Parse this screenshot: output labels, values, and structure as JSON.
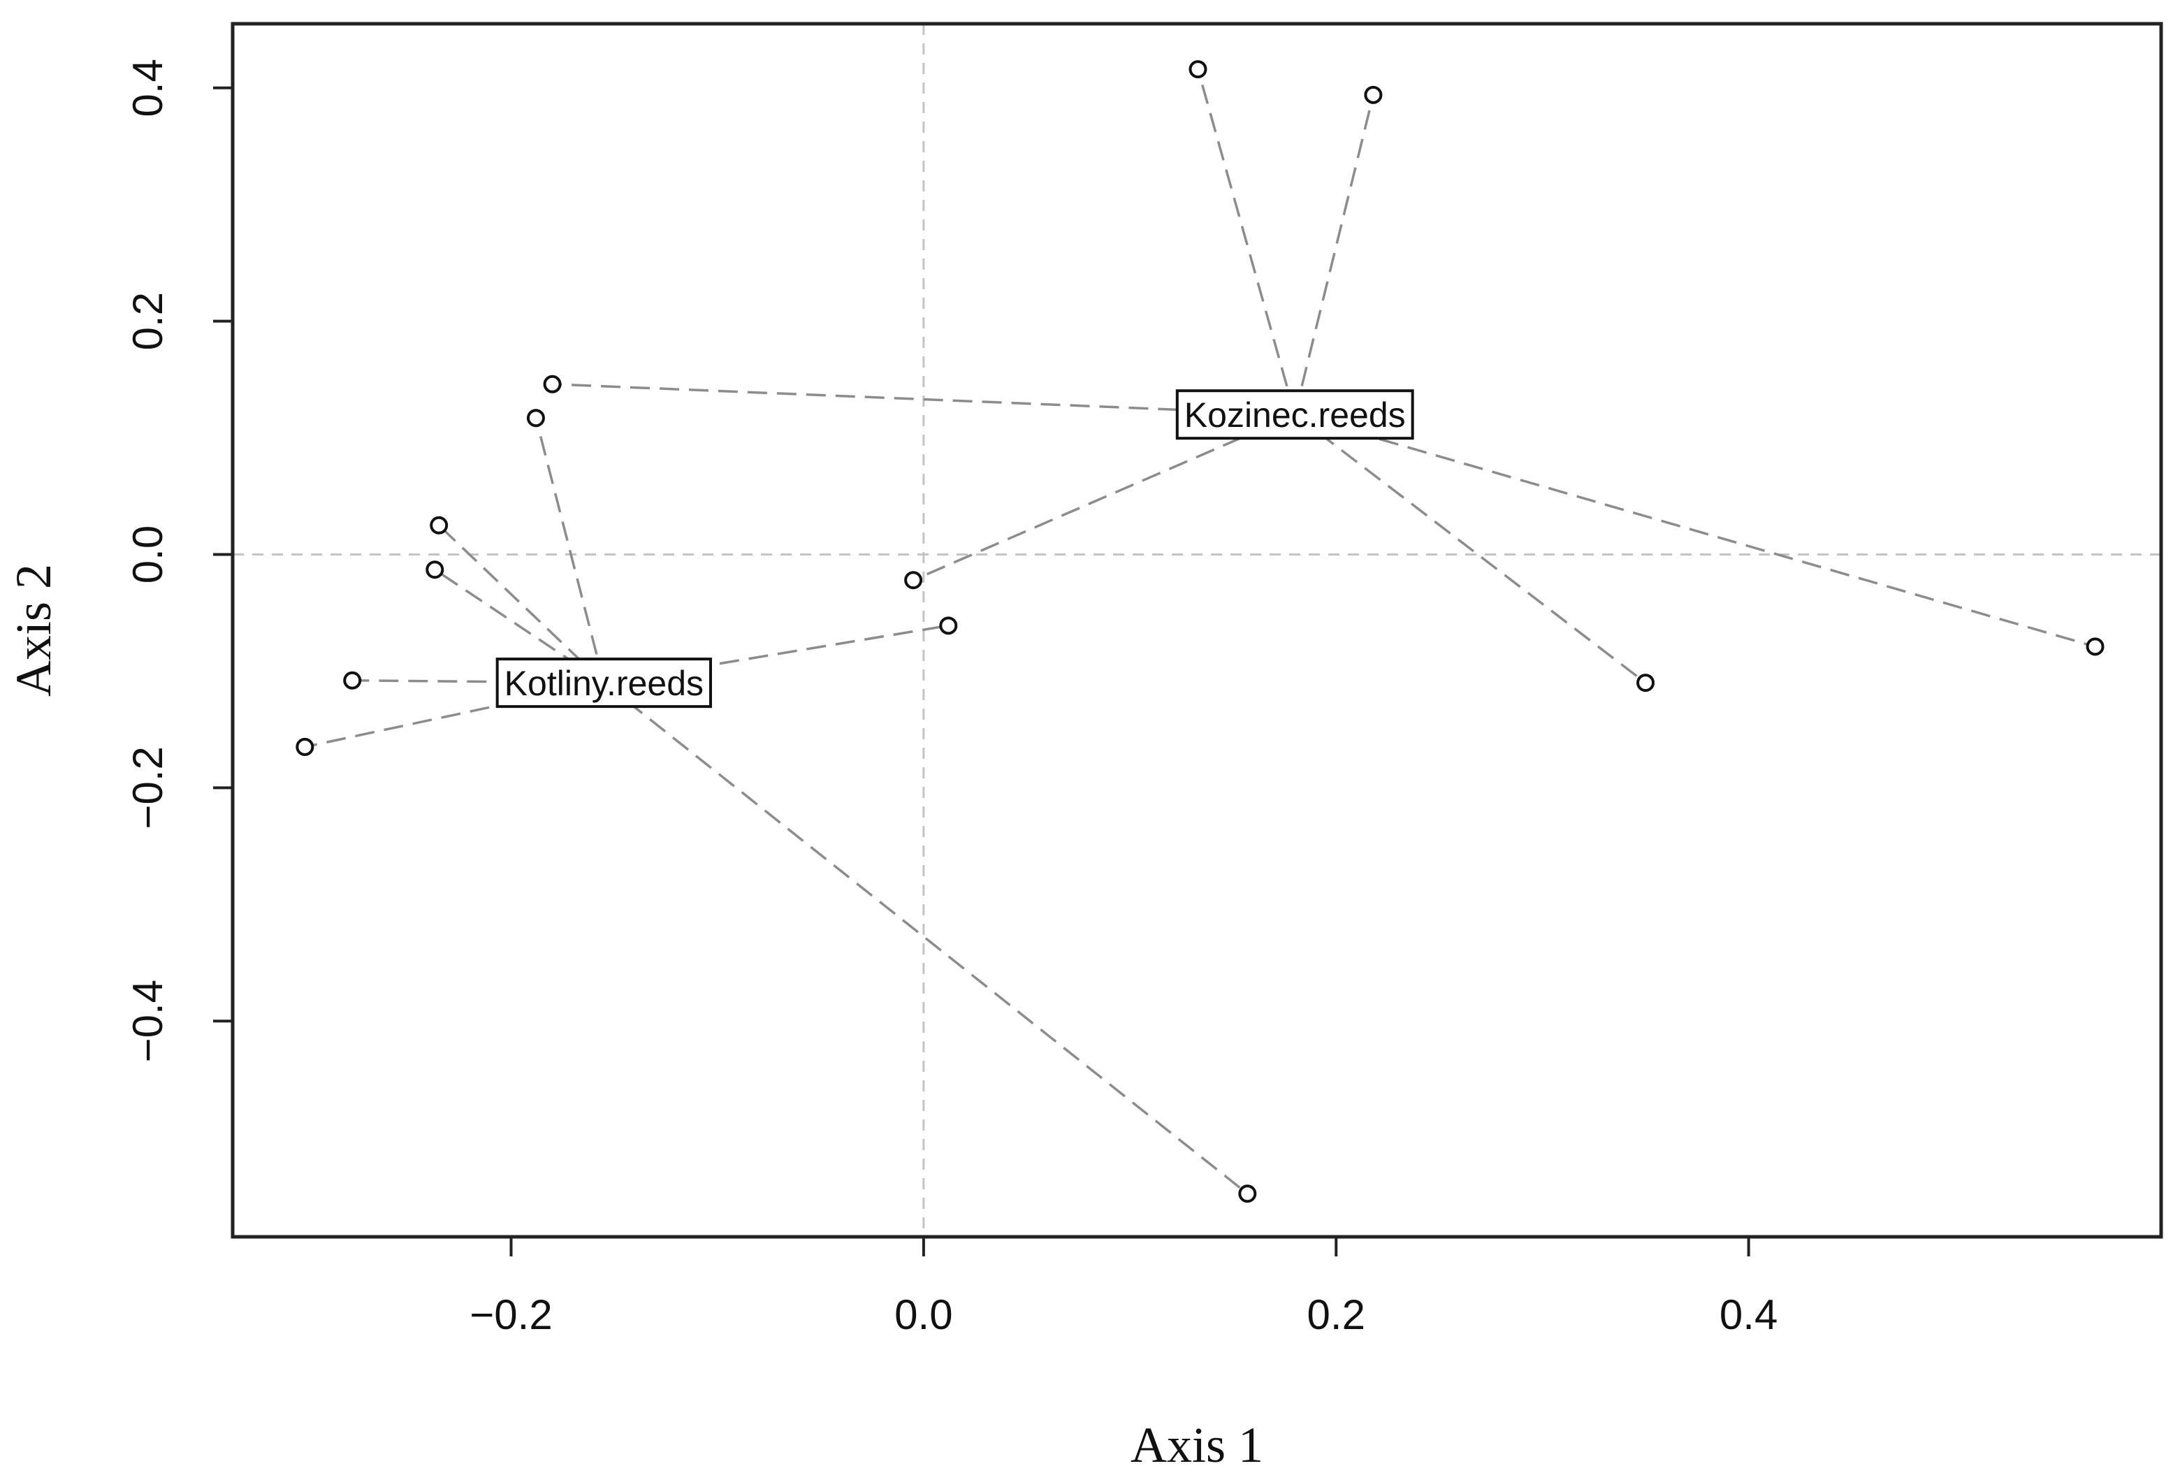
{
  "chart_data": {
    "type": "scatter",
    "title": "",
    "xlabel": "Axis 1",
    "ylabel": "Axis 2",
    "xlim": [
      -0.335,
      0.6
    ],
    "ylim": [
      -0.585,
      0.455
    ],
    "x_ticks": [
      -0.2,
      0.0,
      0.2,
      0.4
    ],
    "y_ticks": [
      0.4,
      0.2,
      0.0,
      -0.2,
      -0.4
    ],
    "x_tick_labels": [
      "−0.2",
      "0.0",
      "0.2",
      "0.4"
    ],
    "y_tick_labels": [
      "0.4",
      "0.2",
      "0.0",
      "−0.2",
      "−0.4"
    ],
    "reference_lines": {
      "x": 0.0,
      "y": 0.0
    },
    "grid": false,
    "groups": [
      {
        "label": "Kozinec.reeds",
        "centroid": [
          0.18,
          0.12
        ],
        "points": [
          [
            0.133,
            0.416
          ],
          [
            0.218,
            0.394
          ],
          [
            -0.18,
            0.146
          ],
          [
            -0.005,
            -0.022
          ],
          [
            0.35,
            -0.11
          ],
          [
            0.568,
            -0.079
          ]
        ]
      },
      {
        "label": "Kotliny.reeds",
        "centroid": [
          -0.155,
          -0.11
        ],
        "points": [
          [
            -0.188,
            0.117
          ],
          [
            -0.235,
            0.025
          ],
          [
            -0.237,
            -0.013
          ],
          [
            -0.277,
            -0.108
          ],
          [
            -0.3,
            -0.165
          ],
          [
            0.012,
            -0.061
          ],
          [
            0.157,
            -0.548
          ]
        ]
      }
    ]
  }
}
